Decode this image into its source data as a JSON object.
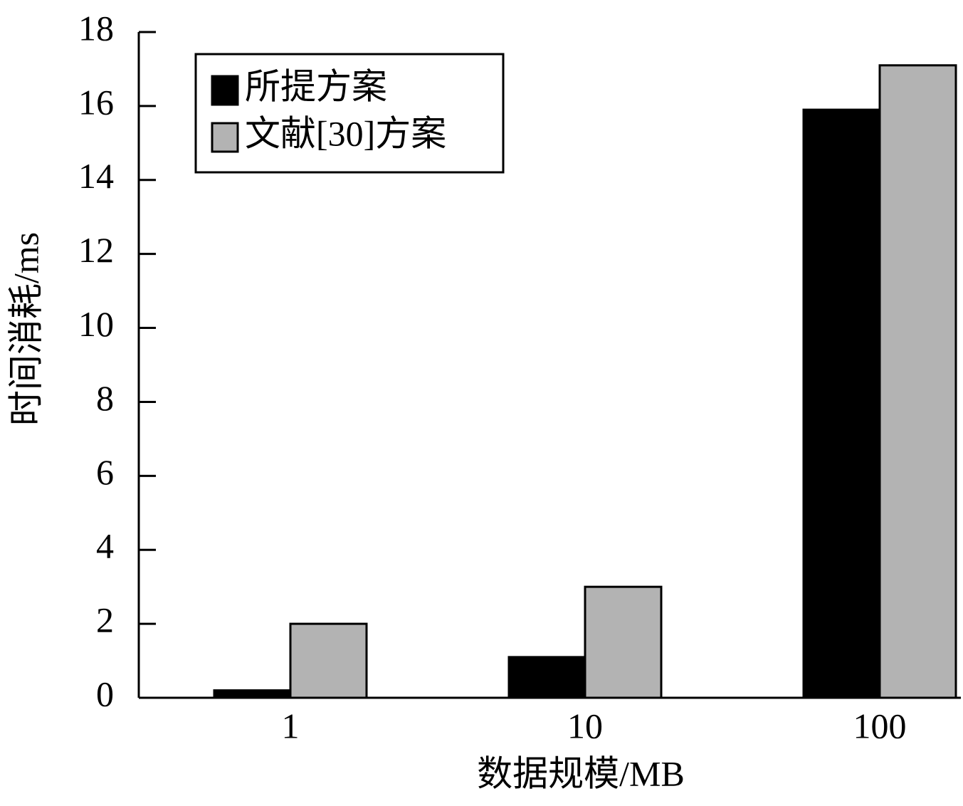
{
  "chart_data": {
    "type": "bar",
    "xlabel": "数据规模/MB",
    "ylabel": "时间消耗/ms",
    "categories": [
      "1",
      "10",
      "100"
    ],
    "series": [
      {
        "name": "所提方案",
        "color": "#000000",
        "values": [
          0.2,
          1.1,
          15.9
        ]
      },
      {
        "name": "文献[30]方案",
        "color": "#b3b3b3",
        "values": [
          2,
          3,
          17.1
        ]
      }
    ],
    "ylim": [
      0,
      18
    ],
    "yticks": [
      0,
      2,
      4,
      6,
      8,
      10,
      12,
      14,
      16,
      18
    ],
    "legend": "upper left"
  }
}
